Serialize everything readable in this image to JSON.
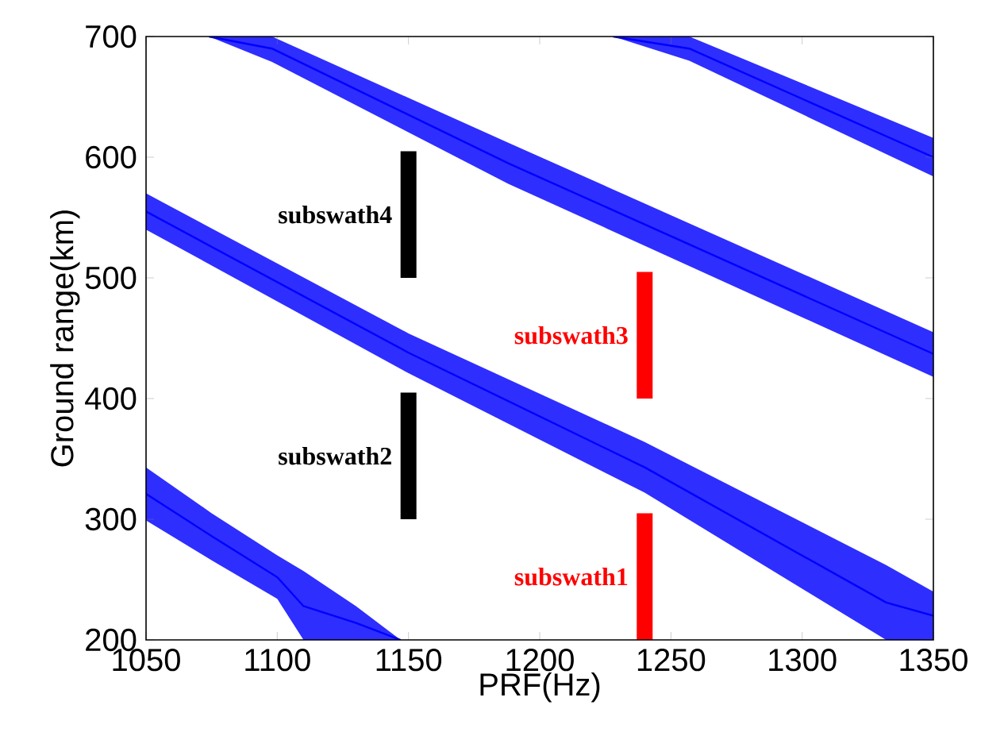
{
  "chart_data": {
    "type": "line",
    "xlabel": "PRF(Hz)",
    "ylabel": "Ground range(km)",
    "xlim": [
      1050,
      1350
    ],
    "ylim": [
      200,
      700
    ],
    "xticks": [
      1050,
      1100,
      1150,
      1200,
      1250,
      1300,
      1350
    ],
    "yticks": [
      200,
      300,
      400,
      500,
      600,
      700
    ],
    "series": [
      {
        "color": "#0000ff",
        "x": [
          1050,
          1075,
          1100,
          1110,
          1130,
          1147
        ],
        "values": [
          321,
          286,
          252,
          228,
          214,
          200
        ],
        "lower": [
          299,
          266,
          234,
          200,
          200,
          200
        ],
        "upper": [
          343,
          305,
          270,
          257,
          228,
          200
        ]
      },
      {
        "color": "#0000ff",
        "x": [
          1050,
          1150,
          1240,
          1332,
          1350
        ],
        "values": [
          555,
          438,
          343,
          231,
          220
        ],
        "lower": [
          540,
          421,
          322,
          200,
          200
        ],
        "upper": [
          570,
          454,
          364,
          262,
          240
        ]
      },
      {
        "color": "#0000ff",
        "x": [
          1074,
          1098,
          1188,
          1350
        ],
        "values": [
          700,
          690,
          595,
          437
        ],
        "lower": [
          700,
          679,
          578,
          418
        ],
        "upper": [
          700,
          700,
          612,
          455
        ]
      },
      {
        "color": "#0000ff",
        "x": [
          1228,
          1257,
          1350
        ],
        "values": [
          700,
          690,
          600
        ],
        "lower": [
          700,
          680,
          584
        ],
        "upper": [
          700,
          700,
          616
        ]
      },
      {
        "name": "subswath1",
        "color": "#ff0000",
        "x": [
          1240,
          1240
        ],
        "values": [
          200,
          305
        ]
      },
      {
        "name": "subswath2",
        "color": "#000000",
        "x": [
          1150,
          1150
        ],
        "values": [
          300,
          405
        ]
      },
      {
        "name": "subswath3",
        "color": "#ff0000",
        "x": [
          1240,
          1240
        ],
        "values": [
          400,
          505
        ]
      },
      {
        "name": "subswath4",
        "color": "#000000",
        "x": [
          1150,
          1150
        ],
        "values": [
          500,
          605
        ]
      }
    ]
  }
}
